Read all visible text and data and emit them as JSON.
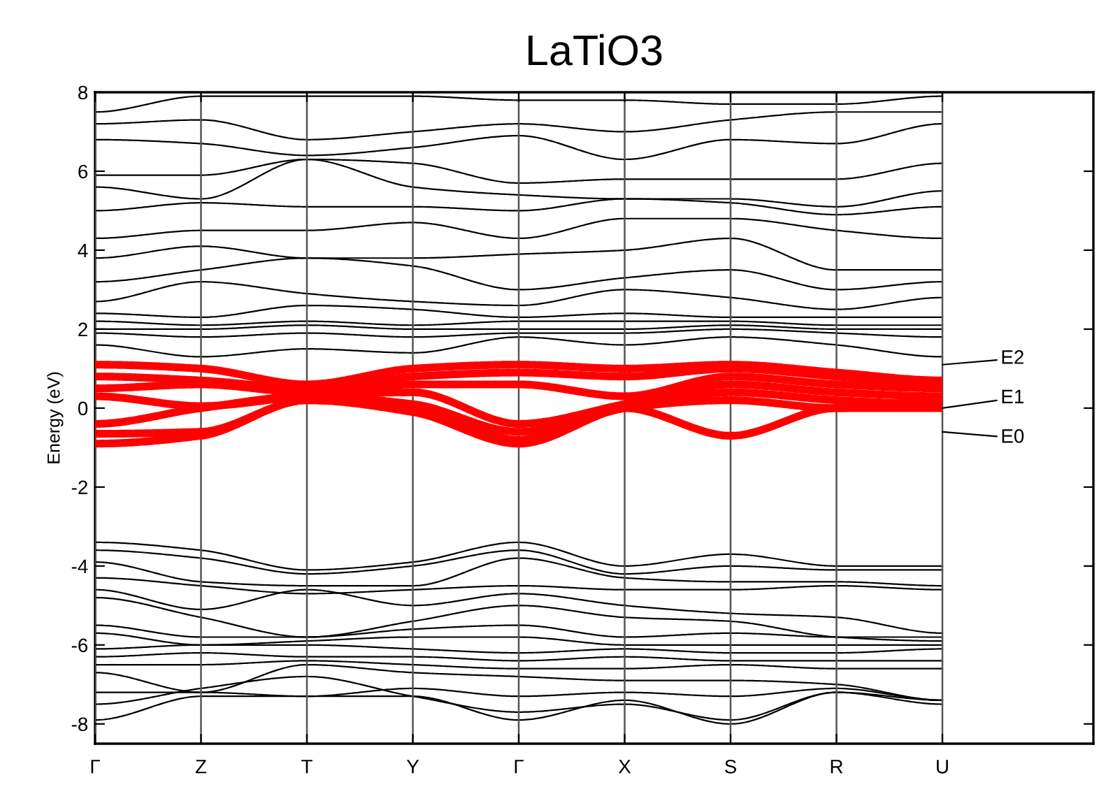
{
  "chart_data": {
    "type": "line",
    "title": "LaTiO3",
    "ylabel": "Energy (eV)",
    "categories": [
      "Γ",
      "Z",
      "T",
      "Y",
      "Γ",
      "X",
      "S",
      "R",
      "U"
    ],
    "ylim": [
      -8.5,
      8
    ],
    "yticks": [
      -8,
      -6,
      -4,
      -2,
      0,
      2,
      4,
      6,
      8
    ],
    "grid": "x",
    "line_style": "solid",
    "marker": "none",
    "series": [
      {
        "color": "#ff0000",
        "values": [
          1.1,
          1.0,
          0.6,
          1.0,
          1.1,
          1.0,
          1.1,
          0.9,
          0.7
        ]
      },
      {
        "color": "#ff0000",
        "values": [
          0.8,
          0.7,
          0.5,
          0.8,
          0.9,
          0.8,
          1.0,
          0.8,
          0.6
        ]
      },
      {
        "color": "#ff0000",
        "values": [
          0.5,
          0.6,
          0.4,
          0.6,
          0.6,
          0.3,
          0.8,
          0.6,
          0.5
        ]
      },
      {
        "color": "#ff0000",
        "values": [
          0.3,
          0.05,
          0.3,
          0.4,
          -0.4,
          0.1,
          0.6,
          0.4,
          0.3
        ]
      },
      {
        "color": "#ff0000",
        "values": [
          -0.4,
          0.0,
          0.3,
          0.1,
          -0.6,
          0.0,
          0.4,
          0.2,
          0.1
        ]
      },
      {
        "color": "#ff0000",
        "values": [
          -0.65,
          -0.6,
          0.2,
          0.0,
          -0.8,
          0.0,
          -0.7,
          0.0,
          0.0
        ]
      },
      {
        "color": "#ff0000",
        "values": [
          -0.9,
          -0.7,
          0.2,
          -0.1,
          -0.9,
          0.0,
          0.2,
          0.0,
          0.2
        ]
      },
      {
        "color": "#000000",
        "values": [
          1.6,
          1.3,
          1.5,
          1.4,
          1.8,
          1.6,
          1.8,
          1.6,
          1.3
        ]
      },
      {
        "color": "#000000",
        "values": [
          1.9,
          1.8,
          1.9,
          1.8,
          1.9,
          1.9,
          2.0,
          1.9,
          1.8
        ]
      },
      {
        "color": "#000000",
        "values": [
          2.0,
          2.0,
          2.1,
          2.0,
          2.0,
          2.0,
          2.1,
          2.0,
          2.0
        ]
      },
      {
        "color": "#000000",
        "values": [
          2.2,
          2.1,
          2.2,
          2.1,
          2.2,
          2.2,
          2.2,
          2.1,
          2.1
        ]
      },
      {
        "color": "#000000",
        "values": [
          2.4,
          2.3,
          2.6,
          2.5,
          2.3,
          2.4,
          2.3,
          2.3,
          2.3
        ]
      },
      {
        "color": "#000000",
        "values": [
          2.7,
          3.2,
          2.9,
          2.7,
          2.6,
          3.0,
          2.8,
          2.5,
          2.8
        ]
      },
      {
        "color": "#000000",
        "values": [
          3.2,
          3.5,
          3.8,
          3.6,
          3.0,
          3.3,
          3.5,
          3.0,
          3.2
        ]
      },
      {
        "color": "#000000",
        "values": [
          3.8,
          4.1,
          3.8,
          3.8,
          3.9,
          4.0,
          4.3,
          3.5,
          3.5
        ]
      },
      {
        "color": "#000000",
        "values": [
          4.3,
          4.5,
          4.5,
          4.7,
          4.3,
          4.8,
          4.8,
          4.5,
          4.3
        ]
      },
      {
        "color": "#000000",
        "values": [
          5.0,
          5.2,
          5.1,
          5.1,
          5.0,
          5.3,
          5.2,
          4.9,
          5.1
        ]
      },
      {
        "color": "#000000",
        "values": [
          5.6,
          5.3,
          6.3,
          5.6,
          5.4,
          5.3,
          5.3,
          5.1,
          5.5
        ]
      },
      {
        "color": "#000000",
        "values": [
          5.9,
          5.9,
          6.3,
          6.2,
          5.7,
          5.8,
          5.8,
          5.8,
          6.2
        ]
      },
      {
        "color": "#000000",
        "values": [
          6.8,
          6.7,
          6.4,
          6.6,
          6.9,
          6.3,
          6.8,
          6.7,
          7.2
        ]
      },
      {
        "color": "#000000",
        "values": [
          7.2,
          7.3,
          6.8,
          7.0,
          7.2,
          7.0,
          7.3,
          7.5,
          7.5
        ]
      },
      {
        "color": "#000000",
        "values": [
          7.5,
          7.9,
          7.9,
          7.9,
          7.8,
          7.8,
          7.7,
          7.7,
          7.9
        ]
      },
      {
        "color": "#000000",
        "values": [
          -3.4,
          -3.6,
          -4.1,
          -3.9,
          -3.4,
          -4.0,
          -3.7,
          -4.0,
          -4.0
        ]
      },
      {
        "color": "#000000",
        "values": [
          -3.6,
          -3.8,
          -4.2,
          -4.0,
          -3.6,
          -4.2,
          -4.0,
          -4.1,
          -4.1
        ]
      },
      {
        "color": "#000000",
        "values": [
          -3.9,
          -4.4,
          -4.5,
          -4.5,
          -3.8,
          -4.3,
          -4.4,
          -4.4,
          -4.5
        ]
      },
      {
        "color": "#000000",
        "values": [
          -4.3,
          -4.5,
          -4.7,
          -4.6,
          -4.5,
          -4.6,
          -4.6,
          -4.5,
          -4.6
        ]
      },
      {
        "color": "#000000",
        "values": [
          -4.6,
          -5.1,
          -4.6,
          -5.0,
          -4.7,
          -5.0,
          -5.2,
          -5.3,
          -5.7
        ]
      },
      {
        "color": "#000000",
        "values": [
          -4.8,
          -5.3,
          -5.8,
          -5.4,
          -5.0,
          -5.3,
          -5.4,
          -5.8,
          -5.9
        ]
      },
      {
        "color": "#000000",
        "values": [
          -5.5,
          -5.8,
          -5.8,
          -5.6,
          -5.5,
          -5.8,
          -5.7,
          -5.8,
          -5.8
        ]
      },
      {
        "color": "#000000",
        "values": [
          -5.7,
          -6.0,
          -5.9,
          -5.8,
          -5.8,
          -6.0,
          -6.0,
          -6.0,
          -6.0
        ]
      },
      {
        "color": "#000000",
        "values": [
          -6.1,
          -6.0,
          -6.0,
          -6.1,
          -6.2,
          -6.1,
          -6.2,
          -6.2,
          -6.1
        ]
      },
      {
        "color": "#000000",
        "values": [
          -6.3,
          -6.2,
          -6.3,
          -6.3,
          -6.4,
          -6.3,
          -6.4,
          -6.4,
          -6.4
        ]
      },
      {
        "color": "#000000",
        "values": [
          -6.5,
          -6.5,
          -6.4,
          -6.5,
          -6.6,
          -6.6,
          -6.5,
          -6.6,
          -6.6
        ]
      },
      {
        "color": "#000000",
        "values": [
          -6.7,
          -7.2,
          -6.5,
          -6.7,
          -6.8,
          -6.9,
          -6.9,
          -7.0,
          -7.4
        ]
      },
      {
        "color": "#000000",
        "values": [
          -7.2,
          -7.2,
          -7.3,
          -7.1,
          -7.3,
          -7.2,
          -7.3,
          -7.1,
          -7.4
        ]
      },
      {
        "color": "#000000",
        "values": [
          -7.5,
          -7.1,
          -6.8,
          -7.3,
          -7.7,
          -7.5,
          -7.9,
          -7.2,
          -7.4
        ]
      },
      {
        "color": "#000000",
        "values": [
          -7.9,
          -7.3,
          -7.3,
          -7.3,
          -7.9,
          -7.4,
          -8.0,
          -7.2,
          -7.5
        ]
      }
    ],
    "annotations": [
      "E2",
      "E1",
      "E0"
    ]
  }
}
